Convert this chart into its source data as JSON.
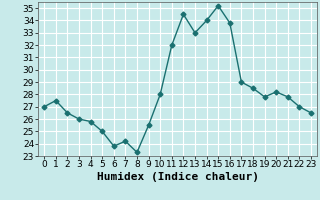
{
  "x": [
    0,
    1,
    2,
    3,
    4,
    5,
    6,
    7,
    8,
    9,
    10,
    11,
    12,
    13,
    14,
    15,
    16,
    17,
    18,
    19,
    20,
    21,
    22,
    23
  ],
  "y": [
    27.0,
    27.5,
    26.5,
    26.0,
    25.8,
    25.0,
    23.8,
    24.2,
    23.3,
    25.5,
    28.0,
    32.0,
    34.5,
    33.0,
    34.0,
    35.2,
    33.8,
    29.0,
    28.5,
    27.8,
    28.2,
    27.8,
    27.0,
    26.5
  ],
  "line_color": "#1a7070",
  "marker": "D",
  "markersize": 2.5,
  "linewidth": 1.0,
  "xlabel": "Humidex (Indice chaleur)",
  "ylim": [
    23,
    35.5
  ],
  "xlim": [
    -0.5,
    23.5
  ],
  "yticks": [
    23,
    24,
    25,
    26,
    27,
    28,
    29,
    30,
    31,
    32,
    33,
    34,
    35
  ],
  "xticks": [
    0,
    1,
    2,
    3,
    4,
    5,
    6,
    7,
    8,
    9,
    10,
    11,
    12,
    13,
    14,
    15,
    16,
    17,
    18,
    19,
    20,
    21,
    22,
    23
  ],
  "bg_color": "#c8eaea",
  "grid_color": "#ffffff",
  "tick_fontsize": 6.5,
  "xlabel_fontsize": 8
}
